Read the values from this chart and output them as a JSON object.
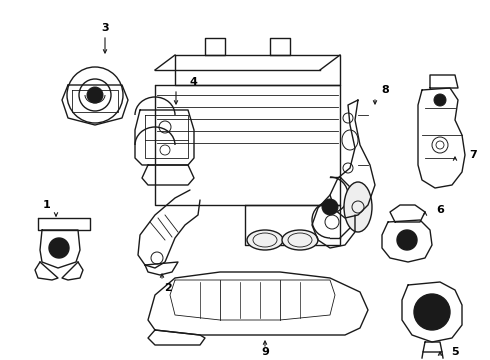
{
  "bg_color": "#ffffff",
  "line_color": "#1a1a1a",
  "line_width": 1.0,
  "fig_width": 4.9,
  "fig_height": 3.6,
  "dpi": 100
}
